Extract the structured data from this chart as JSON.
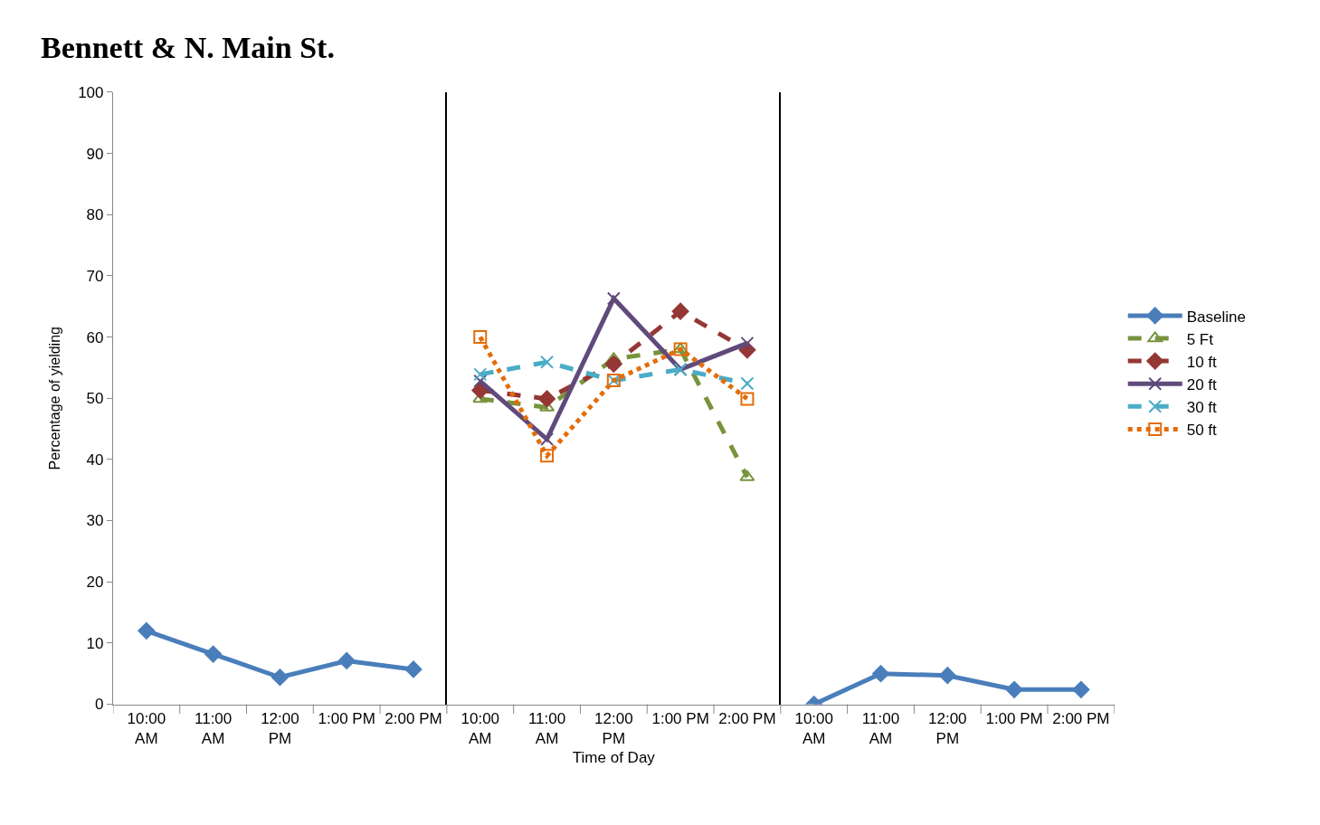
{
  "chart_data": [
    {
      "type": "line",
      "title": "Bennett & N. Main St.",
      "ylabel": "Percentage of yielding",
      "categories": [
        "10:00 AM",
        "11:00 AM",
        "12:00 PM",
        "1:00 PM",
        "2:00 PM"
      ],
      "ylim": [
        0,
        100
      ],
      "yticks": [
        0,
        10,
        20,
        30,
        40,
        50,
        60,
        70,
        80,
        90,
        100
      ],
      "series": [
        {
          "name": "Baseline",
          "color": "#4a7ebb",
          "values": [
            12.0,
            8.2,
            4.4,
            7.1,
            5.7
          ],
          "marker": "diamond",
          "line_style": "solid"
        }
      ]
    },
    {
      "type": "line",
      "xlabel": "Time of Day",
      "categories": [
        "10:00 AM",
        "11:00 AM",
        "12:00 PM",
        "1:00 PM",
        "2:00 PM"
      ],
      "ylim": [
        0,
        100
      ],
      "tick_labels": "x",
      "legend": "right",
      "series": [
        {
          "name": "5 Ft",
          "color": "#77933c",
          "values": [
            49.9,
            48.5,
            56.4,
            58.0,
            37.1
          ],
          "marker": "triangle",
          "line_style": "dashed"
        },
        {
          "name": "10 ft",
          "color": "#953735",
          "values": [
            51.3,
            49.9,
            55.6,
            64.2,
            57.9
          ],
          "marker": "diamond",
          "line_style": "dashed"
        },
        {
          "name": "20 ft",
          "color": "#604a7b",
          "values": [
            52.8,
            43.3,
            66.3,
            54.7,
            59.0
          ],
          "marker": "cross",
          "line_style": "solid"
        },
        {
          "name": "30 ft",
          "color": "#4bacc6",
          "values": [
            53.9,
            55.9,
            52.9,
            54.7,
            52.4
          ],
          "marker": "cross",
          "line_style": "dashed"
        },
        {
          "name": "50 ft",
          "color": "#e46c0a",
          "values": [
            60.0,
            40.6,
            52.9,
            58.0,
            49.9
          ],
          "marker": "square",
          "line_style": "dotted"
        }
      ]
    },
    {
      "type": "line",
      "categories": [
        "10:00 AM",
        "11:00 AM",
        "12:00 PM",
        "1:00 PM",
        "2:00 PM"
      ],
      "ylim": [
        0,
        100
      ],
      "tick_labels": "x",
      "series": [
        {
          "color": "#4a7ebb",
          "values": [
            0,
            5.0,
            4.7,
            2.4,
            2.4
          ],
          "marker": "diamond",
          "line_style": "solid"
        }
      ]
    }
  ]
}
